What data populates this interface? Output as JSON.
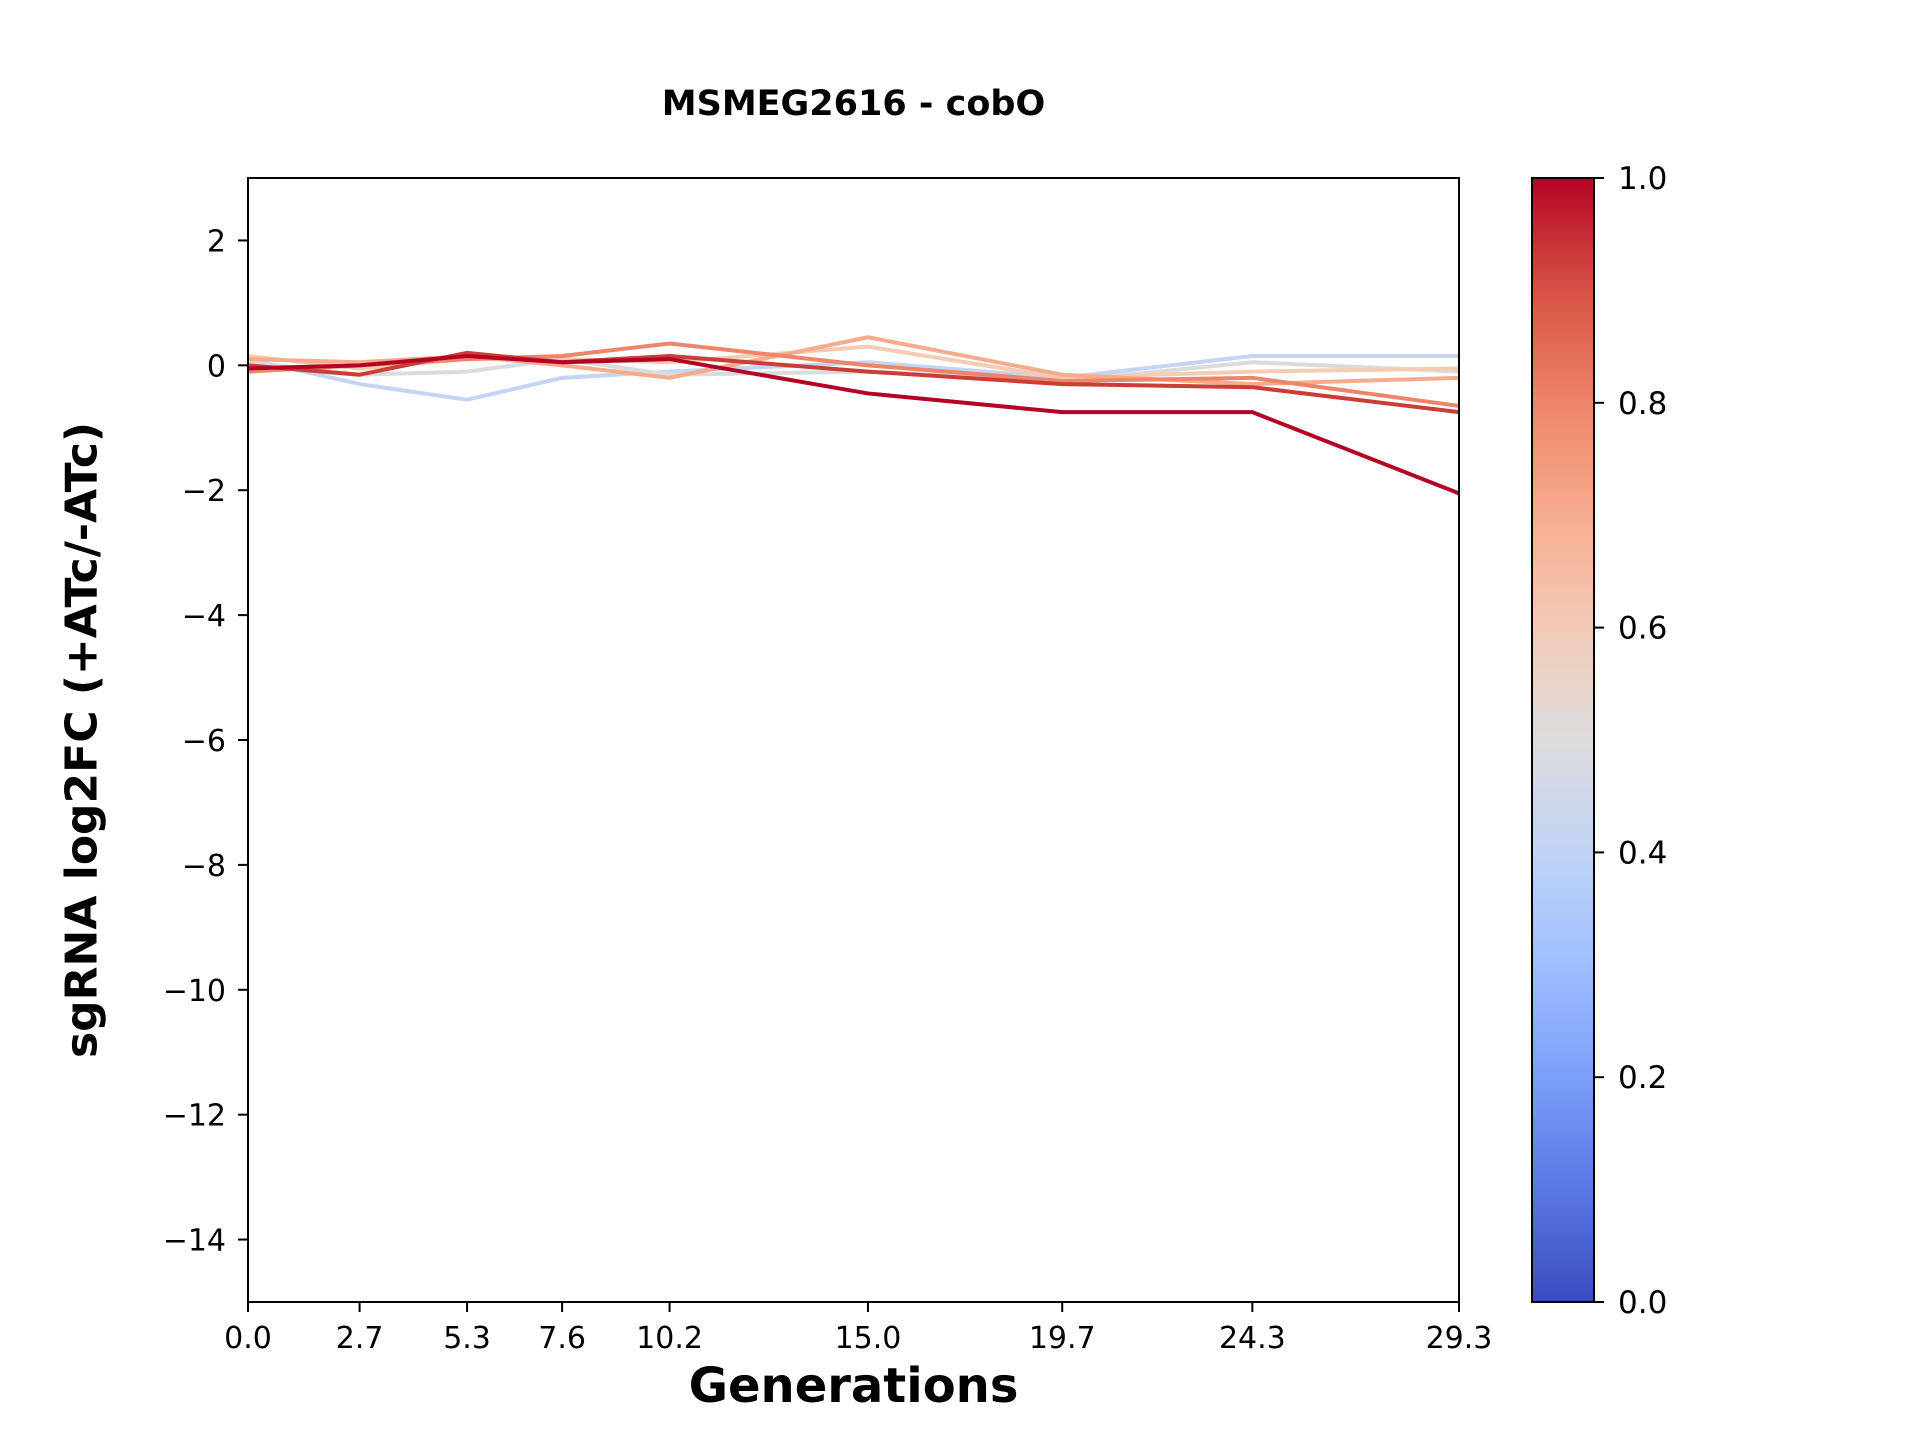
{
  "figure": {
    "background": "#ffffff"
  },
  "chart_data": {
    "type": "line",
    "title": "MSMEG2616 - cobO",
    "xlabel": "Generations",
    "ylabel": "sgRNA log2FC (+ATc/-ATc)",
    "x": [
      0.0,
      2.7,
      5.3,
      7.6,
      10.2,
      15.0,
      19.7,
      24.3,
      29.3
    ],
    "x_tick_labels": [
      "0.0",
      "2.7",
      "5.3",
      "7.6",
      "10.2",
      "15.0",
      "19.7",
      "24.3",
      "29.3"
    ],
    "y_ticks": [
      2,
      0,
      -2,
      -4,
      -6,
      -8,
      -10,
      -12,
      -14
    ],
    "y_tick_labels": [
      "2",
      "0",
      "−2",
      "−4",
      "−6",
      "−8",
      "−10",
      "−12",
      "−14"
    ],
    "xlim": [
      0,
      29.3
    ],
    "ylim": [
      -15,
      3
    ],
    "grid": false,
    "legend": "none",
    "line_width": 4,
    "series": [
      {
        "colormap_value": 0.42,
        "color": "#c3d5f3",
        "values": [
          0.1,
          -0.3,
          -0.55,
          -0.2,
          -0.1,
          0.05,
          -0.2,
          0.15,
          0.15
        ]
      },
      {
        "colormap_value": 0.5,
        "color": "#dcdbdb",
        "values": [
          0.05,
          -0.15,
          -0.1,
          0.1,
          -0.15,
          -0.1,
          -0.25,
          0.05,
          -0.1
        ]
      },
      {
        "colormap_value": 0.6,
        "color": "#f3ccb3",
        "values": [
          0.15,
          -0.05,
          0.1,
          0.1,
          0.05,
          0.3,
          -0.2,
          -0.1,
          -0.05
        ]
      },
      {
        "colormap_value": 0.7,
        "color": "#f6ab8c",
        "values": [
          0.1,
          0.05,
          0.15,
          0.0,
          -0.2,
          0.45,
          -0.15,
          -0.3,
          -0.2
        ]
      },
      {
        "colormap_value": 0.8,
        "color": "#ee8468",
        "values": [
          -0.1,
          0.0,
          0.1,
          0.15,
          0.35,
          0.0,
          -0.25,
          -0.2,
          -0.65
        ]
      },
      {
        "colormap_value": 0.92,
        "color": "#cb3e38",
        "values": [
          0.0,
          -0.15,
          0.2,
          0.05,
          0.15,
          -0.1,
          -0.3,
          -0.35,
          -0.75
        ]
      },
      {
        "colormap_value": 1.0,
        "color": "#b40426",
        "values": [
          -0.05,
          0.0,
          0.15,
          0.05,
          0.1,
          -0.45,
          -0.75,
          -0.75,
          -2.05
        ]
      }
    ],
    "colorbar": {
      "orientation": "vertical",
      "range": [
        0.0,
        1.0
      ],
      "ticks": [
        {
          "value": 0.0,
          "label": "0.0"
        },
        {
          "value": 0.2,
          "label": "0.2"
        },
        {
          "value": 0.4,
          "label": "0.4"
        },
        {
          "value": 0.6,
          "label": "0.6"
        },
        {
          "value": 0.8,
          "label": "0.8"
        },
        {
          "value": 1.0,
          "label": "1.0"
        }
      ],
      "stops": [
        {
          "t": 0.0,
          "color": "#3b4cc0"
        },
        {
          "t": 0.1,
          "color": "#5977e3"
        },
        {
          "t": 0.2,
          "color": "#7b9ff9"
        },
        {
          "t": 0.3,
          "color": "#9ebeff"
        },
        {
          "t": 0.4,
          "color": "#c0d4f5"
        },
        {
          "t": 0.5,
          "color": "#dddcdc"
        },
        {
          "t": 0.6,
          "color": "#f2cbb7"
        },
        {
          "t": 0.7,
          "color": "#f7ac8e"
        },
        {
          "t": 0.8,
          "color": "#ee8468"
        },
        {
          "t": 0.9,
          "color": "#d65244"
        },
        {
          "t": 1.0,
          "color": "#b40426"
        }
      ]
    }
  }
}
